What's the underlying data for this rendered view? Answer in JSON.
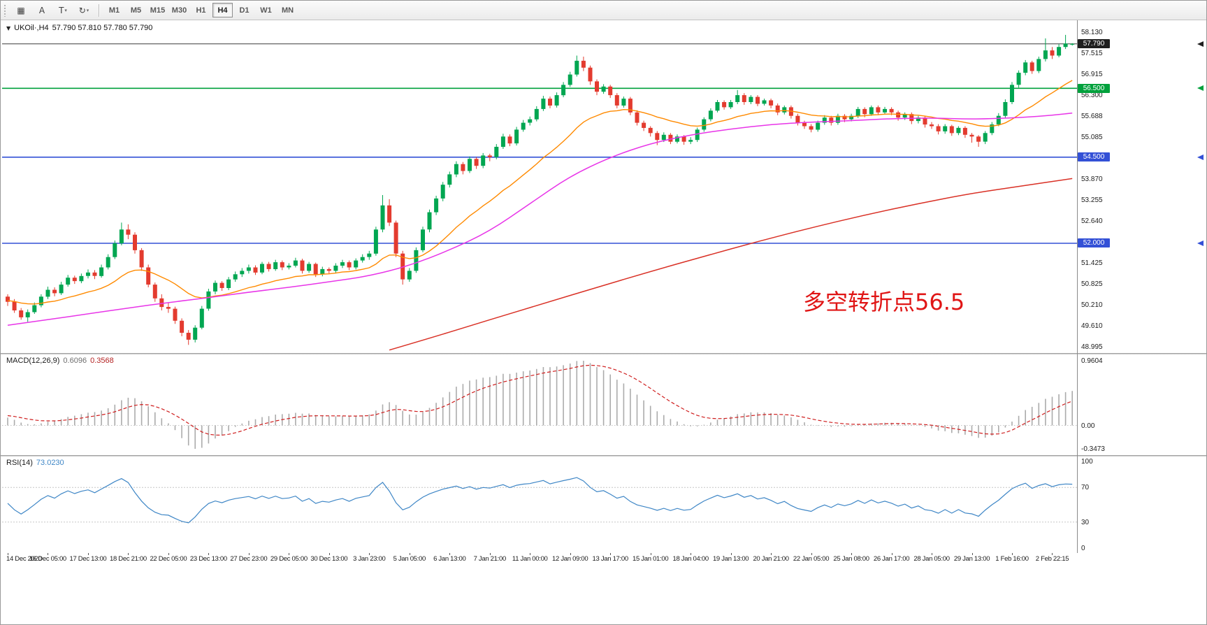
{
  "toolbar": {
    "tools": [
      {
        "name": "chart-grid-tool",
        "glyph": "▦",
        "caret": false
      },
      {
        "name": "text-a-tool",
        "glyph": "A",
        "caret": false
      },
      {
        "name": "text-t-tool",
        "glyph": "T",
        "caret": true
      },
      {
        "name": "cycle-tool",
        "glyph": "↻",
        "caret": true
      }
    ],
    "timeframes": [
      {
        "label": "M1",
        "active": false
      },
      {
        "label": "M5",
        "active": false
      },
      {
        "label": "M15",
        "active": false
      },
      {
        "label": "M30",
        "active": false
      },
      {
        "label": "H1",
        "active": false
      },
      {
        "label": "H4",
        "active": true
      },
      {
        "label": "D1",
        "active": false
      },
      {
        "label": "W1",
        "active": false
      },
      {
        "label": "MN",
        "active": false
      }
    ]
  },
  "chart": {
    "header": {
      "collapse_icon": "▼",
      "symbol": "UKOil·,H4",
      "ohlc": "57.790 57.810 57.780 57.790"
    },
    "annotation": {
      "text": "多空转折点56.5",
      "color": "#e01515"
    },
    "price_line": {
      "text": "57.790",
      "value": 57.79,
      "line_color": "#3c3c3c",
      "tag_color": "#1f1f1f"
    },
    "levels": [
      {
        "text": "56.500",
        "value": 56.5,
        "color": "#00A13C"
      },
      {
        "text": "54.500",
        "value": 54.5,
        "color": "#3350D6"
      },
      {
        "text": "52.000",
        "value": 52.0,
        "color": "#3350D6"
      }
    ],
    "price_axis_labels": [
      {
        "text": "58.130",
        "value": 58.13
      },
      {
        "text": "57.515",
        "value": 57.515
      },
      {
        "text": "56.915",
        "value": 56.915
      },
      {
        "text": "56.300",
        "value": 56.3
      },
      {
        "text": "55.688",
        "value": 55.688
      },
      {
        "text": "55.085",
        "value": 55.085
      },
      {
        "text": "53.870",
        "value": 53.87
      },
      {
        "text": "53.255",
        "value": 53.255
      },
      {
        "text": "52.640",
        "value": 52.64
      },
      {
        "text": "51.425",
        "value": 51.425
      },
      {
        "text": "50.825",
        "value": 50.825
      },
      {
        "text": "50.210",
        "value": 50.21
      },
      {
        "text": "49.610",
        "value": 49.61
      },
      {
        "text": "48.995",
        "value": 48.995
      }
    ]
  },
  "macd": {
    "label": "MACD(12,26,9)",
    "value_main": "0.6096",
    "value_signal": "0.3568",
    "axis": [
      {
        "text": "0.9604",
        "value": 0.9604
      },
      {
        "text": "0.00",
        "value": 0
      },
      {
        "text": "-0.3473",
        "value": -0.3473
      }
    ],
    "bar_color": "#ababab",
    "signal_color": "#cf1f1f"
  },
  "rsi": {
    "label": "RSI(14)",
    "value": "73.0230",
    "axis": [
      {
        "text": "100",
        "value": 100
      },
      {
        "text": "70",
        "value": 70
      },
      {
        "text": "30",
        "value": 30
      },
      {
        "text": "0",
        "value": 0
      }
    ],
    "levels": [
      70,
      30
    ],
    "line_color": "#3E86C6"
  },
  "time_axis": {
    "labels": [
      "14 Dec 2020",
      "16 Dec 05:00",
      "17 Dec 13:00",
      "18 Dec 21:00",
      "22 Dec 05:00",
      "23 Dec 13:00",
      "27 Dec 23:00",
      "29 Dec 05:00",
      "30 Dec 13:00",
      "3 Jan 23:00",
      "5 Jan 05:00",
      "6 Jan 13:00",
      "7 Jan 21:00",
      "11 Jan 00:00",
      "12 Jan 09:00",
      "13 Jan 17:00",
      "15 Jan 01:00",
      "18 Jan 04:00",
      "19 Jan 13:00",
      "20 Jan 21:00",
      "22 Jan 05:00",
      "25 Jan 08:00",
      "26 Jan 17:00",
      "28 Jan 05:00",
      "29 Jan 13:00",
      "1 Feb 16:00",
      "2 Feb 22:15"
    ],
    "candles_per_label": 6
  },
  "chart_data": {
    "type": "candlestick",
    "symbol": "UKOil",
    "timeframe": "H4",
    "ylim": [
      48.995,
      58.13
    ],
    "up_color": "#00A651",
    "down_color": "#E33B2F",
    "candles": [
      [
        50.45,
        50.52,
        50.18,
        50.3
      ],
      [
        50.3,
        50.38,
        49.98,
        50.05
      ],
      [
        50.05,
        50.12,
        49.78,
        49.85
      ],
      [
        49.85,
        50.08,
        49.72,
        50.0
      ],
      [
        50.0,
        50.28,
        49.95,
        50.2
      ],
      [
        50.2,
        50.52,
        50.14,
        50.45
      ],
      [
        50.45,
        50.74,
        50.38,
        50.65
      ],
      [
        50.65,
        50.72,
        50.46,
        50.55
      ],
      [
        50.55,
        50.88,
        50.5,
        50.8
      ],
      [
        50.8,
        51.08,
        50.74,
        51.0
      ],
      [
        51.0,
        51.06,
        50.82,
        50.9
      ],
      [
        50.9,
        51.12,
        50.84,
        51.05
      ],
      [
        51.05,
        51.24,
        50.98,
        51.15
      ],
      [
        51.15,
        51.22,
        50.96,
        51.05
      ],
      [
        51.05,
        51.38,
        51.0,
        51.3
      ],
      [
        51.3,
        51.68,
        51.24,
        51.6
      ],
      [
        51.6,
        52.08,
        51.54,
        52.0
      ],
      [
        52.0,
        52.6,
        51.94,
        52.4
      ],
      [
        52.4,
        52.55,
        52.12,
        52.25
      ],
      [
        52.25,
        52.32,
        51.7,
        51.8
      ],
      [
        51.8,
        51.86,
        51.2,
        51.3
      ],
      [
        51.3,
        51.38,
        50.72,
        50.8
      ],
      [
        50.8,
        50.86,
        50.3,
        50.4
      ],
      [
        50.4,
        50.52,
        50.05,
        50.15
      ],
      [
        50.15,
        50.28,
        49.98,
        50.1
      ],
      [
        50.1,
        50.16,
        49.66,
        49.75
      ],
      [
        49.75,
        49.82,
        49.3,
        49.4
      ],
      [
        49.4,
        49.48,
        49.05,
        49.2
      ],
      [
        49.2,
        49.62,
        49.12,
        49.55
      ],
      [
        49.55,
        50.18,
        49.5,
        50.1
      ],
      [
        50.1,
        50.68,
        50.04,
        50.6
      ],
      [
        50.6,
        50.92,
        50.52,
        50.85
      ],
      [
        50.85,
        50.9,
        50.62,
        50.7
      ],
      [
        50.7,
        51.02,
        50.64,
        50.95
      ],
      [
        50.95,
        51.18,
        50.88,
        51.1
      ],
      [
        51.1,
        51.28,
        51.02,
        51.2
      ],
      [
        51.2,
        51.38,
        51.12,
        51.3
      ],
      [
        51.3,
        51.36,
        51.08,
        51.15
      ],
      [
        51.15,
        51.46,
        51.1,
        51.4
      ],
      [
        51.4,
        51.46,
        51.18,
        51.25
      ],
      [
        51.25,
        51.52,
        51.2,
        51.45
      ],
      [
        51.45,
        51.5,
        51.22,
        51.3
      ],
      [
        51.3,
        51.42,
        51.24,
        51.35
      ],
      [
        51.35,
        51.58,
        51.3,
        51.5
      ],
      [
        51.5,
        51.55,
        51.12,
        51.2
      ],
      [
        51.2,
        51.46,
        51.14,
        51.4
      ],
      [
        51.4,
        51.44,
        51.02,
        51.1
      ],
      [
        51.1,
        51.32,
        51.04,
        51.25
      ],
      [
        51.25,
        51.3,
        51.12,
        51.2
      ],
      [
        51.2,
        51.42,
        51.14,
        51.35
      ],
      [
        51.35,
        51.52,
        51.28,
        51.45
      ],
      [
        51.45,
        51.5,
        51.22,
        51.3
      ],
      [
        51.3,
        51.56,
        51.24,
        51.5
      ],
      [
        51.5,
        51.68,
        51.44,
        51.6
      ],
      [
        51.6,
        51.78,
        51.52,
        51.7
      ],
      [
        51.7,
        52.48,
        51.64,
        52.4
      ],
      [
        52.4,
        53.4,
        52.32,
        53.1
      ],
      [
        53.1,
        53.28,
        52.5,
        52.6
      ],
      [
        52.6,
        52.66,
        51.6,
        51.7
      ],
      [
        51.7,
        51.78,
        50.8,
        50.95
      ],
      [
        50.95,
        51.28,
        50.88,
        51.2
      ],
      [
        51.2,
        51.88,
        51.14,
        51.8
      ],
      [
        51.8,
        52.48,
        51.74,
        52.4
      ],
      [
        52.4,
        52.98,
        52.32,
        52.9
      ],
      [
        52.9,
        53.38,
        52.82,
        53.3
      ],
      [
        53.3,
        53.78,
        53.22,
        53.7
      ],
      [
        53.7,
        54.08,
        53.62,
        54.0
      ],
      [
        54.0,
        54.38,
        53.92,
        54.3
      ],
      [
        54.3,
        54.36,
        54.0,
        54.1
      ],
      [
        54.1,
        54.52,
        54.04,
        54.45
      ],
      [
        54.45,
        54.5,
        54.16,
        54.25
      ],
      [
        54.25,
        54.62,
        54.18,
        54.55
      ],
      [
        54.55,
        54.6,
        54.38,
        54.5
      ],
      [
        54.5,
        54.88,
        54.44,
        54.8
      ],
      [
        54.8,
        55.18,
        54.74,
        55.1
      ],
      [
        55.1,
        55.16,
        54.82,
        54.9
      ],
      [
        54.9,
        55.38,
        54.84,
        55.3
      ],
      [
        55.3,
        55.58,
        55.24,
        55.5
      ],
      [
        55.5,
        55.68,
        55.42,
        55.6
      ],
      [
        55.6,
        55.98,
        55.54,
        55.9
      ],
      [
        55.9,
        56.28,
        55.84,
        56.2
      ],
      [
        56.2,
        56.26,
        55.92,
        56.0
      ],
      [
        56.0,
        56.38,
        55.94,
        56.3
      ],
      [
        56.3,
        56.68,
        56.24,
        56.6
      ],
      [
        56.6,
        56.98,
        56.54,
        56.9
      ],
      [
        56.9,
        57.45,
        56.84,
        57.3
      ],
      [
        57.3,
        57.42,
        57.0,
        57.1
      ],
      [
        57.1,
        57.16,
        56.6,
        56.7
      ],
      [
        56.7,
        56.76,
        56.3,
        56.4
      ],
      [
        56.4,
        56.62,
        56.34,
        56.55
      ],
      [
        56.55,
        56.6,
        56.22,
        56.3
      ],
      [
        56.3,
        56.36,
        55.92,
        56.0
      ],
      [
        56.0,
        56.26,
        55.94,
        56.2
      ],
      [
        56.2,
        56.25,
        55.72,
        55.8
      ],
      [
        55.8,
        55.86,
        55.42,
        55.5
      ],
      [
        55.5,
        55.56,
        55.26,
        55.35
      ],
      [
        55.35,
        55.4,
        55.1,
        55.2
      ],
      [
        55.2,
        55.26,
        54.85,
        55.0
      ],
      [
        55.0,
        55.22,
        54.94,
        55.15
      ],
      [
        55.15,
        55.2,
        54.88,
        54.95
      ],
      [
        54.95,
        55.16,
        54.9,
        55.1
      ],
      [
        55.1,
        55.14,
        54.86,
        54.95
      ],
      [
        54.95,
        55.08,
        54.88,
        55.0
      ],
      [
        55.0,
        55.36,
        54.94,
        55.3
      ],
      [
        55.3,
        55.66,
        55.24,
        55.6
      ],
      [
        55.6,
        55.92,
        55.54,
        55.85
      ],
      [
        55.85,
        56.16,
        55.8,
        56.1
      ],
      [
        56.1,
        56.15,
        55.88,
        55.95
      ],
      [
        55.95,
        56.16,
        55.9,
        56.1
      ],
      [
        56.1,
        56.45,
        56.04,
        56.3
      ],
      [
        56.3,
        56.36,
        56.02,
        56.1
      ],
      [
        56.1,
        56.3,
        56.04,
        56.25
      ],
      [
        56.25,
        56.3,
        55.98,
        56.05
      ],
      [
        56.05,
        56.2,
        56.0,
        56.15
      ],
      [
        56.15,
        56.2,
        55.92,
        56.0
      ],
      [
        56.0,
        56.06,
        55.72,
        55.8
      ],
      [
        55.8,
        56.0,
        55.74,
        55.95
      ],
      [
        55.95,
        56.0,
        55.62,
        55.7
      ],
      [
        55.7,
        55.76,
        55.42,
        55.5
      ],
      [
        55.5,
        55.56,
        55.32,
        55.4
      ],
      [
        55.4,
        55.46,
        55.22,
        55.3
      ],
      [
        55.3,
        55.56,
        55.24,
        55.5
      ],
      [
        55.5,
        55.72,
        55.44,
        55.65
      ],
      [
        55.65,
        55.7,
        55.42,
        55.5
      ],
      [
        55.5,
        55.76,
        55.44,
        55.7
      ],
      [
        55.7,
        55.75,
        55.52,
        55.6
      ],
      [
        55.6,
        55.76,
        55.54,
        55.7
      ],
      [
        55.7,
        55.96,
        55.64,
        55.9
      ],
      [
        55.9,
        55.95,
        55.66,
        55.75
      ],
      [
        55.75,
        56.0,
        55.7,
        55.95
      ],
      [
        55.95,
        56.0,
        55.72,
        55.8
      ],
      [
        55.8,
        55.96,
        55.74,
        55.9
      ],
      [
        55.9,
        55.95,
        55.72,
        55.8
      ],
      [
        55.8,
        55.85,
        55.56,
        55.65
      ],
      [
        55.65,
        55.8,
        55.58,
        55.75
      ],
      [
        55.75,
        55.8,
        55.46,
        55.55
      ],
      [
        55.55,
        55.7,
        55.48,
        55.65
      ],
      [
        55.65,
        55.7,
        55.36,
        55.45
      ],
      [
        55.45,
        55.52,
        55.32,
        55.4
      ],
      [
        55.4,
        55.46,
        55.16,
        55.25
      ],
      [
        55.25,
        55.46,
        55.18,
        55.4
      ],
      [
        55.4,
        55.44,
        55.12,
        55.2
      ],
      [
        55.2,
        55.4,
        55.14,
        55.35
      ],
      [
        55.35,
        55.4,
        55.06,
        55.15
      ],
      [
        55.15,
        55.2,
        54.92,
        55.1
      ],
      [
        55.1,
        55.14,
        54.8,
        54.95
      ],
      [
        54.95,
        55.26,
        54.88,
        55.2
      ],
      [
        55.2,
        55.52,
        55.14,
        55.45
      ],
      [
        55.45,
        55.78,
        55.4,
        55.7
      ],
      [
        55.7,
        56.18,
        55.64,
        56.1
      ],
      [
        56.1,
        56.68,
        56.04,
        56.6
      ],
      [
        56.6,
        57.02,
        56.52,
        56.95
      ],
      [
        56.95,
        57.32,
        56.88,
        57.25
      ],
      [
        57.25,
        57.3,
        56.92,
        57.0
      ],
      [
        57.0,
        57.42,
        56.94,
        57.35
      ],
      [
        57.35,
        57.95,
        57.28,
        57.6
      ],
      [
        57.6,
        57.7,
        57.35,
        57.45
      ],
      [
        57.45,
        57.78,
        57.4,
        57.7
      ],
      [
        57.7,
        58.05,
        57.64,
        57.8
      ],
      [
        57.79,
        57.81,
        57.74,
        57.79
      ]
    ],
    "history_closes": [
      48.6,
      48.72,
      48.65,
      48.8,
      48.88,
      48.75,
      48.92,
      49.0,
      48.9,
      49.05,
      49.15,
      49.02,
      49.2,
      49.28,
      49.15,
      49.32,
      49.4,
      49.28,
      49.45,
      49.52,
      49.4,
      49.58,
      49.65,
      49.52,
      49.7,
      49.78,
      49.65,
      49.8,
      49.88,
      49.75,
      49.92,
      50.0,
      49.88,
      50.05,
      50.12,
      50.0,
      50.15,
      50.22,
      50.08,
      50.18,
      50.28,
      50.12,
      50.25,
      50.35,
      50.2,
      50.32,
      50.4,
      50.26,
      50.38,
      50.45,
      50.3,
      50.42,
      50.5,
      50.35,
      50.45,
      50.52,
      50.38,
      50.48,
      50.55,
      50.45
    ],
    "overlays": {
      "ma_fast": {
        "type": "ema",
        "period": 20,
        "color": "#FF8A00"
      },
      "ma_mid": {
        "color": "#E835E8",
        "anchors": [
          [
            0,
            49.62
          ],
          [
            6,
            49.78
          ],
          [
            12,
            49.95
          ],
          [
            18,
            50.12
          ],
          [
            24,
            50.28
          ],
          [
            30,
            50.42
          ],
          [
            36,
            50.58
          ],
          [
            42,
            50.72
          ],
          [
            48,
            50.88
          ],
          [
            54,
            51.05
          ],
          [
            60,
            51.35
          ],
          [
            66,
            51.8
          ],
          [
            72,
            52.35
          ],
          [
            78,
            53.15
          ],
          [
            84,
            53.95
          ],
          [
            90,
            54.5
          ],
          [
            96,
            54.9
          ],
          [
            102,
            55.15
          ],
          [
            108,
            55.32
          ],
          [
            114,
            55.45
          ],
          [
            120,
            55.52
          ],
          [
            126,
            55.56
          ],
          [
            132,
            55.62
          ],
          [
            138,
            55.64
          ],
          [
            144,
            55.6
          ],
          [
            150,
            55.64
          ],
          [
            155,
            55.7
          ],
          [
            159,
            55.78
          ]
        ]
      },
      "ma_slow": {
        "color": "#D93025",
        "anchors": [
          [
            57,
            48.9
          ],
          [
            64,
            49.3
          ],
          [
            72,
            49.78
          ],
          [
            80,
            50.25
          ],
          [
            88,
            50.72
          ],
          [
            96,
            51.18
          ],
          [
            104,
            51.62
          ],
          [
            112,
            52.05
          ],
          [
            120,
            52.45
          ],
          [
            128,
            52.82
          ],
          [
            136,
            53.15
          ],
          [
            144,
            53.45
          ],
          [
            151,
            53.65
          ],
          [
            159,
            53.88
          ]
        ]
      },
      "macd_params": [
        12,
        26,
        9
      ],
      "rsi_period": 14
    }
  }
}
